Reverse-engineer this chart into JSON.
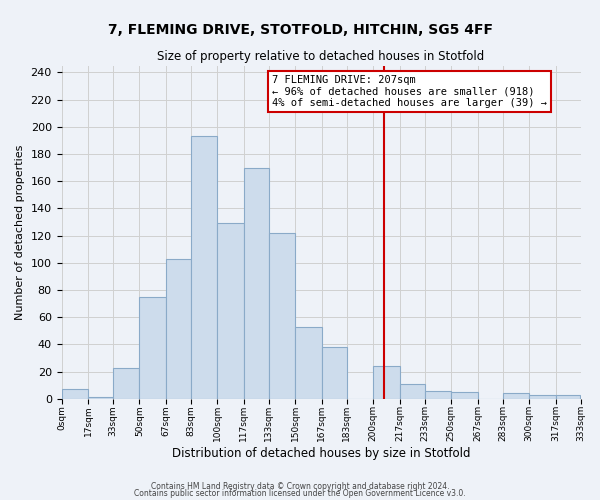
{
  "title": "7, FLEMING DRIVE, STOTFOLD, HITCHIN, SG5 4FF",
  "subtitle": "Size of property relative to detached houses in Stotfold",
  "xlabel": "Distribution of detached houses by size in Stotfold",
  "ylabel": "Number of detached properties",
  "bin_edges": [
    0,
    17,
    33,
    50,
    67,
    83,
    100,
    117,
    133,
    150,
    167,
    183,
    200,
    217,
    233,
    250,
    267,
    283,
    300,
    317,
    333
  ],
  "bar_heights": [
    7,
    1,
    23,
    75,
    103,
    193,
    129,
    170,
    122,
    53,
    38,
    0,
    24,
    11,
    6,
    5,
    0,
    4,
    3,
    3
  ],
  "bar_color": "#cddcec",
  "bar_edge_color": "#8aaac8",
  "grid_color": "#d0d0d0",
  "background_color": "#eef2f8",
  "vline_x": 207,
  "vline_color": "#cc0000",
  "annotation_line1": "7 FLEMING DRIVE: 207sqm",
  "annotation_line2": "← 96% of detached houses are smaller (918)",
  "annotation_line3": "4% of semi-detached houses are larger (39) →",
  "annotation_box_color": "#ffffff",
  "annotation_box_edge": "#cc0000",
  "ylim": [
    0,
    245
  ],
  "xtick_labels": [
    "0sqm",
    "17sqm",
    "33sqm",
    "50sqm",
    "67sqm",
    "83sqm",
    "100sqm",
    "117sqm",
    "133sqm",
    "150sqm",
    "167sqm",
    "183sqm",
    "200sqm",
    "217sqm",
    "233sqm",
    "250sqm",
    "267sqm",
    "283sqm",
    "300sqm",
    "317sqm",
    "333sqm"
  ],
  "footnote1": "Contains HM Land Registry data © Crown copyright and database right 2024.",
  "footnote2": "Contains public sector information licensed under the Open Government Licence v3.0."
}
